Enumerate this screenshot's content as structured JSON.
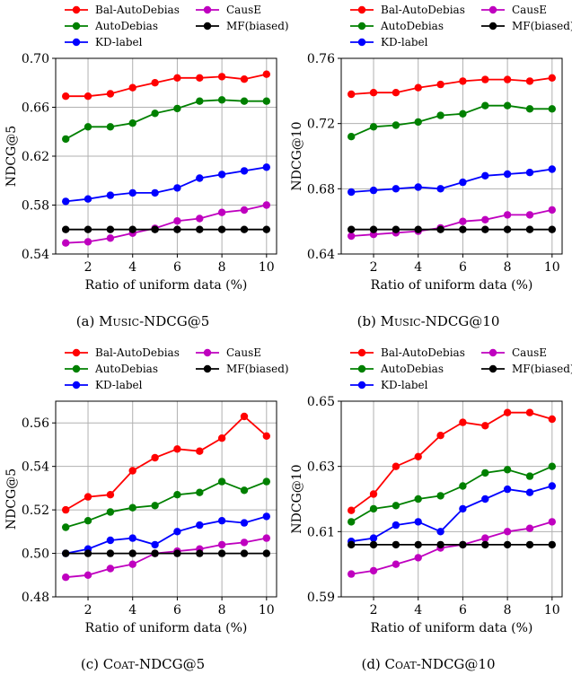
{
  "colors": {
    "Bal-AutoDebias": "#ff0000",
    "AutoDebias": "#008000",
    "KD-label": "#0000ff",
    "CausE": "#bf00bf",
    "MF(biased)": "#000000"
  },
  "chart_data": [
    {
      "type": "line",
      "caption": {
        "prefix": "(a) ",
        "dataset": "Music",
        "metric": "-NDCG@5"
      },
      "xlabel": "Ratio of uniform data (%)",
      "ylabel": "NDCG@5",
      "x": [
        1,
        2,
        3,
        4,
        5,
        6,
        7,
        8,
        9,
        10
      ],
      "xticks": [
        "2",
        "4",
        "6",
        "8",
        "10"
      ],
      "ylim": [
        0.54,
        0.7
      ],
      "yticks": [
        "0.54",
        "0.58",
        "0.62",
        "0.66",
        "0.70"
      ],
      "grid": true,
      "legend": "top",
      "series": [
        {
          "name": "Bal-AutoDebias",
          "values": [
            0.669,
            0.669,
            0.671,
            0.676,
            0.68,
            0.684,
            0.684,
            0.685,
            0.683,
            0.687
          ]
        },
        {
          "name": "AutoDebias",
          "values": [
            0.634,
            0.644,
            0.644,
            0.647,
            0.655,
            0.659,
            0.665,
            0.666,
            0.665,
            0.665
          ]
        },
        {
          "name": "KD-label",
          "values": [
            0.583,
            0.585,
            0.588,
            0.59,
            0.59,
            0.594,
            0.602,
            0.605,
            0.608,
            0.611
          ]
        },
        {
          "name": "CausE",
          "values": [
            0.549,
            0.55,
            0.553,
            0.557,
            0.561,
            0.567,
            0.569,
            0.574,
            0.576,
            0.58
          ]
        },
        {
          "name": "MF(biased)",
          "values": [
            0.56,
            0.56,
            0.56,
            0.56,
            0.56,
            0.56,
            0.56,
            0.56,
            0.56,
            0.56
          ]
        }
      ]
    },
    {
      "type": "line",
      "caption": {
        "prefix": "(b) ",
        "dataset": "Music",
        "metric": "-NDCG@10"
      },
      "xlabel": "Ratio of uniform data (%)",
      "ylabel": "NDCG@10",
      "x": [
        1,
        2,
        3,
        4,
        5,
        6,
        7,
        8,
        9,
        10
      ],
      "xticks": [
        "2",
        "4",
        "6",
        "8",
        "10"
      ],
      "ylim": [
        0.64,
        0.76
      ],
      "yticks": [
        "0.64",
        "0.68",
        "0.72",
        "0.76"
      ],
      "grid": true,
      "legend": "top",
      "series": [
        {
          "name": "Bal-AutoDebias",
          "values": [
            0.738,
            0.739,
            0.739,
            0.742,
            0.744,
            0.746,
            0.747,
            0.747,
            0.746,
            0.748
          ]
        },
        {
          "name": "AutoDebias",
          "values": [
            0.712,
            0.718,
            0.719,
            0.721,
            0.725,
            0.726,
            0.731,
            0.731,
            0.729,
            0.729
          ]
        },
        {
          "name": "KD-label",
          "values": [
            0.678,
            0.679,
            0.68,
            0.681,
            0.68,
            0.684,
            0.688,
            0.689,
            0.69,
            0.692
          ]
        },
        {
          "name": "CausE",
          "values": [
            0.651,
            0.652,
            0.653,
            0.654,
            0.656,
            0.66,
            0.661,
            0.664,
            0.664,
            0.667
          ]
        },
        {
          "name": "MF(biased)",
          "values": [
            0.655,
            0.655,
            0.655,
            0.655,
            0.655,
            0.655,
            0.655,
            0.655,
            0.655,
            0.655
          ]
        }
      ]
    },
    {
      "type": "line",
      "caption": {
        "prefix": "(c) ",
        "dataset": "Coat",
        "metric": "-NDCG@5"
      },
      "xlabel": "Ratio of uniform data (%)",
      "ylabel": "NDCG@5",
      "x": [
        1,
        2,
        3,
        4,
        5,
        6,
        7,
        8,
        9,
        10
      ],
      "xticks": [
        "2",
        "4",
        "6",
        "8",
        "10"
      ],
      "ylim": [
        0.48,
        0.57
      ],
      "yticks": [
        "0.48",
        "0.50",
        "0.52",
        "0.54",
        "0.56"
      ],
      "grid": true,
      "legend": "top",
      "series": [
        {
          "name": "Bal-AutoDebias",
          "values": [
            0.52,
            0.526,
            0.527,
            0.538,
            0.544,
            0.548,
            0.547,
            0.553,
            0.563,
            0.554
          ]
        },
        {
          "name": "AutoDebias",
          "values": [
            0.512,
            0.515,
            0.519,
            0.521,
            0.522,
            0.527,
            0.528,
            0.533,
            0.529,
            0.533
          ]
        },
        {
          "name": "KD-label",
          "values": [
            0.5,
            0.502,
            0.506,
            0.507,
            0.504,
            0.51,
            0.513,
            0.515,
            0.514,
            0.517
          ]
        },
        {
          "name": "CausE",
          "values": [
            0.489,
            0.49,
            0.493,
            0.495,
            0.5,
            0.501,
            0.502,
            0.504,
            0.505,
            0.507
          ]
        },
        {
          "name": "MF(biased)",
          "values": [
            0.5,
            0.5,
            0.5,
            0.5,
            0.5,
            0.5,
            0.5,
            0.5,
            0.5,
            0.5
          ]
        }
      ]
    },
    {
      "type": "line",
      "caption": {
        "prefix": "(d) ",
        "dataset": "Coat",
        "metric": "-NDCG@10"
      },
      "xlabel": "Ratio of uniform data (%)",
      "ylabel": "NDCG@10",
      "x": [
        1,
        2,
        3,
        4,
        5,
        6,
        7,
        8,
        9,
        10
      ],
      "xticks": [
        "2",
        "4",
        "6",
        "8",
        "10"
      ],
      "ylim": [
        0.59,
        0.65
      ],
      "yticks": [
        "0.59",
        "0.61",
        "0.63",
        "0.65"
      ],
      "grid": true,
      "legend": "top",
      "series": [
        {
          "name": "Bal-AutoDebias",
          "values": [
            0.6165,
            0.6215,
            0.63,
            0.633,
            0.6395,
            0.6435,
            0.6425,
            0.6465,
            0.6465,
            0.6445
          ]
        },
        {
          "name": "AutoDebias",
          "values": [
            0.613,
            0.617,
            0.618,
            0.62,
            0.621,
            0.624,
            0.628,
            0.629,
            0.627,
            0.63
          ]
        },
        {
          "name": "KD-label",
          "values": [
            0.607,
            0.608,
            0.612,
            0.613,
            0.61,
            0.617,
            0.62,
            0.623,
            0.622,
            0.624
          ]
        },
        {
          "name": "CausE",
          "values": [
            0.597,
            0.598,
            0.6,
            0.602,
            0.605,
            0.606,
            0.608,
            0.61,
            0.611,
            0.613
          ]
        },
        {
          "name": "MF(biased)",
          "values": [
            0.606,
            0.606,
            0.606,
            0.606,
            0.606,
            0.606,
            0.606,
            0.606,
            0.606,
            0.606
          ]
        }
      ]
    }
  ]
}
